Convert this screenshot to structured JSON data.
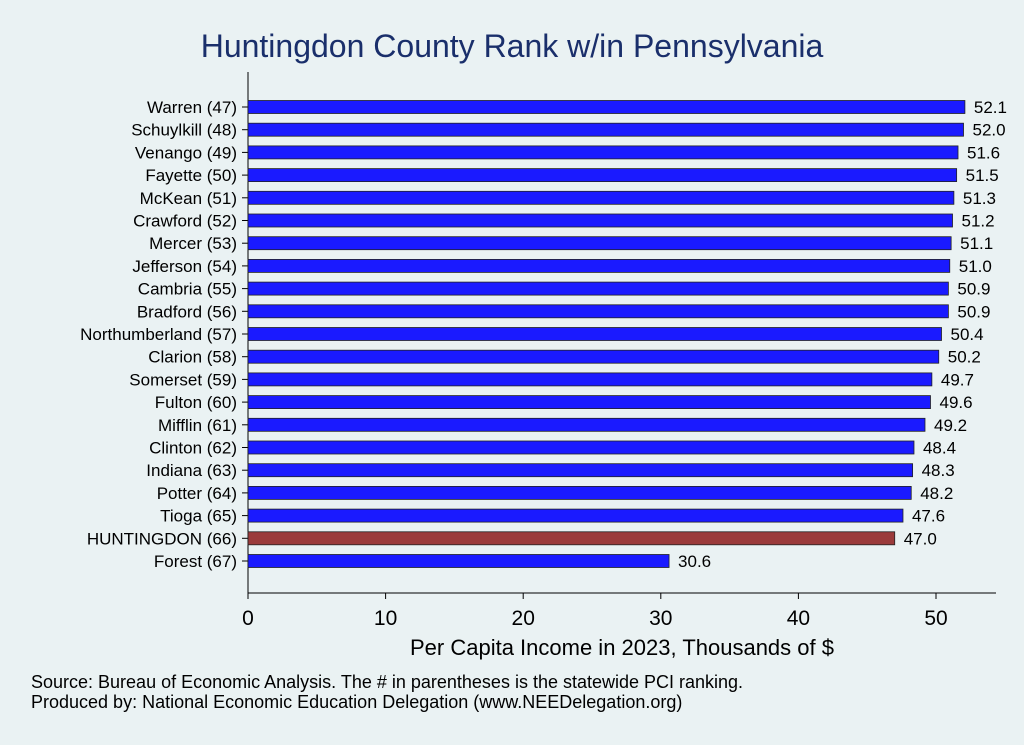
{
  "chart_data": {
    "type": "bar",
    "orientation": "horizontal",
    "title": "Huntingdon County Rank w/in Pennsylvania",
    "xlabel": "Per Capita Income in 2023, Thousands of $",
    "xlim": [
      0,
      54
    ],
    "xticks": [
      0,
      10,
      20,
      30,
      40,
      50
    ],
    "grid": false,
    "categories": [
      "Warren (47)",
      "Schuylkill (48)",
      "Venango (49)",
      "Fayette (50)",
      "McKean (51)",
      "Crawford (52)",
      "Mercer (53)",
      "Jefferson (54)",
      "Cambria (55)",
      "Bradford (56)",
      "Northumberland (57)",
      "Clarion (58)",
      "Somerset (59)",
      "Fulton (60)",
      "Mifflin (61)",
      "Clinton (62)",
      "Indiana (63)",
      "Potter (64)",
      "Tioga (65)",
      "HUNTINGDON (66)",
      "Forest (67)"
    ],
    "values": [
      52.1,
      52.0,
      51.6,
      51.5,
      51.3,
      51.2,
      51.1,
      51.0,
      50.9,
      50.9,
      50.4,
      50.2,
      49.7,
      49.6,
      49.2,
      48.4,
      48.3,
      48.2,
      47.6,
      47.0,
      30.6
    ],
    "value_labels": [
      "52.1",
      "52.0",
      "51.6",
      "51.5",
      "51.3",
      "51.2",
      "51.1",
      "51.0",
      "50.9",
      "50.9",
      "50.4",
      "50.2",
      "49.7",
      "49.6",
      "49.2",
      "48.4",
      "48.3",
      "48.2",
      "47.6",
      "47.0",
      "30.6"
    ],
    "highlight_index": 19,
    "colors": {
      "bar": "#1a1aff",
      "highlight": "#9b3b3b",
      "background": "#eaf2f3",
      "title": "#1a2f6b"
    }
  },
  "footer": {
    "source": "Source: Bureau of Economic Analysis. The # in parentheses is the statewide PCI ranking.",
    "produced": "Produced by: National Economic Education Delegation (www.NEEDelegation.org)"
  }
}
